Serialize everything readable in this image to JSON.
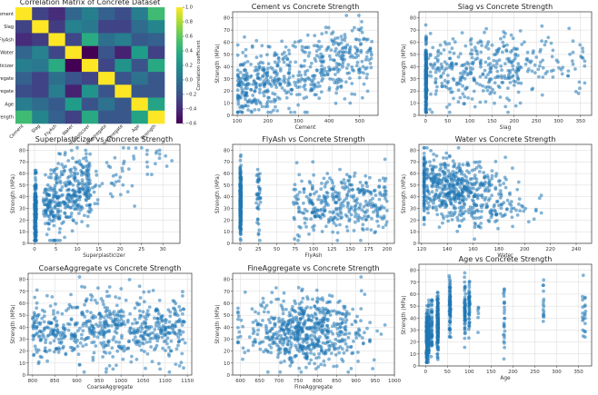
{
  "heatmap": {
    "title": "Correlation Matrix of Concrete Dataset",
    "variables": [
      "Cement",
      "Slag",
      "FlyAsh",
      "Water",
      "Superplasticizer",
      "CoarseAggregate",
      "FineAggregate",
      "Age",
      "Strength"
    ],
    "x_tick_labels": [
      "Cement",
      "Slag",
      "FlyAsh",
      "Water",
      "Superplasticizer",
      "CoarseAggregate",
      "FineAggregate",
      "Age",
      "Strength"
    ],
    "colorbar_label": "Correlation coefficient",
    "colorbar_ticks": [
      "1.0",
      "0.8",
      "0.6",
      "0.4",
      "0.2",
      "0.0",
      "−0.2",
      "−0.4",
      "−0.6"
    ],
    "colors": {
      "low": "#440154",
      "mid": "#21918c",
      "high": "#fde725"
    }
  },
  "chart_data": [
    {
      "type": "heatmap",
      "title": "Correlation Matrix of Concrete Dataset",
      "rows": [
        "Cement",
        "Slag",
        "FlyAsh",
        "Water",
        "Superplasticizer",
        "CoarseAggregate",
        "FineAggregate",
        "Age",
        "Strength"
      ],
      "cols": [
        "Cement",
        "Slag",
        "FlyAsh",
        "Water",
        "Superplasticizer",
        "CoarseAggregate",
        "FineAggregate",
        "Age",
        "Strength"
      ],
      "values": [
        [
          1.0,
          -0.28,
          -0.4,
          -0.08,
          0.09,
          -0.11,
          -0.22,
          0.08,
          0.5
        ],
        [
          -0.28,
          1.0,
          -0.32,
          0.11,
          0.04,
          -0.28,
          -0.28,
          -0.04,
          0.13
        ],
        [
          -0.4,
          -0.32,
          1.0,
          -0.26,
          0.38,
          -0.01,
          0.08,
          -0.15,
          -0.11
        ],
        [
          -0.08,
          0.11,
          -0.26,
          1.0,
          -0.66,
          -0.18,
          -0.45,
          0.28,
          -0.29
        ],
        [
          0.09,
          0.04,
          0.38,
          -0.66,
          1.0,
          -0.27,
          0.22,
          -0.19,
          0.37
        ],
        [
          -0.11,
          -0.28,
          -0.01,
          -0.18,
          -0.27,
          1.0,
          -0.18,
          0.0,
          -0.16
        ],
        [
          -0.22,
          -0.28,
          0.08,
          -0.45,
          0.22,
          -0.18,
          1.0,
          -0.16,
          -0.17
        ],
        [
          0.08,
          -0.04,
          -0.15,
          0.28,
          -0.19,
          0.0,
          -0.16,
          1.0,
          0.33
        ],
        [
          0.5,
          0.13,
          -0.11,
          -0.29,
          0.37,
          -0.16,
          -0.17,
          0.33,
          1.0
        ]
      ],
      "vmin": -0.6,
      "vmax": 1.0
    },
    {
      "type": "scatter",
      "title": "Cement vs Concrete Strength",
      "xlabel": "Cement",
      "ylabel": "Strength (MPa)",
      "xlim": [
        85,
        560
      ],
      "ylim": [
        0,
        85
      ],
      "xticks": [
        100,
        200,
        300,
        400,
        500
      ],
      "yticks": [
        0,
        10,
        20,
        30,
        40,
        50,
        60,
        70,
        80
      ],
      "grid": true,
      "color": "#1f77b4"
    },
    {
      "type": "scatter",
      "title": "Slag vs Concrete Strength",
      "xlabel": "Slag",
      "ylabel": "Strength (MPa)",
      "xlim": [
        -15,
        375
      ],
      "ylim": [
        0,
        85
      ],
      "xticks": [
        0,
        50,
        100,
        150,
        200,
        250,
        300,
        350
      ],
      "yticks": [
        0,
        10,
        20,
        30,
        40,
        50,
        60,
        70,
        80
      ],
      "grid": true,
      "color": "#1f77b4"
    },
    {
      "type": "scatter",
      "title": "Superplasticizer vs Concrete Strength",
      "xlabel": "Superplasticizer",
      "ylabel": "Strength (MPa)",
      "xlim": [
        -1.5,
        34
      ],
      "ylim": [
        0,
        85
      ],
      "xticks": [
        0,
        5,
        10,
        15,
        20,
        25,
        30
      ],
      "yticks": [
        0,
        10,
        20,
        30,
        40,
        50,
        60,
        70,
        80
      ],
      "grid": true,
      "color": "#1f77b4"
    },
    {
      "type": "scatter",
      "title": "FlyAsh vs Concrete Strength",
      "xlabel": "FlyAsh",
      "ylabel": "Strength (MPa)",
      "xlim": [
        -10,
        210
      ],
      "ylim": [
        0,
        85
      ],
      "xticks": [
        0,
        25,
        50,
        75,
        100,
        125,
        150,
        175,
        200
      ],
      "yticks": [
        0,
        10,
        20,
        30,
        40,
        50,
        60,
        70,
        80
      ],
      "grid": true,
      "color": "#1f77b4"
    },
    {
      "type": "scatter",
      "title": "Water vs Concrete Strength",
      "xlabel": "Water",
      "ylabel": "Strength (MPa)",
      "xlim": [
        118,
        252
      ],
      "ylim": [
        0,
        85
      ],
      "xticks": [
        120,
        140,
        160,
        180,
        200,
        220,
        240
      ],
      "yticks": [
        0,
        10,
        20,
        30,
        40,
        50,
        60,
        70,
        80
      ],
      "grid": true,
      "color": "#1f77b4"
    },
    {
      "type": "scatter",
      "title": "CoarseAggregate vs Concrete Strength",
      "xlabel": "CoarseAggregate",
      "ylabel": "Strength (MPa)",
      "xlim": [
        790,
        1160
      ],
      "ylim": [
        0,
        85
      ],
      "xticks": [
        800,
        850,
        900,
        950,
        1000,
        1050,
        1100,
        1150
      ],
      "yticks": [
        0,
        10,
        20,
        30,
        40,
        50,
        60,
        70,
        80
      ],
      "grid": true,
      "color": "#1f77b4"
    },
    {
      "type": "scatter",
      "title": "FineAggregate vs Concrete Strength",
      "xlabel": "FineAggregate",
      "ylabel": "Strength (MPa)",
      "xlim": [
        580,
        1000
      ],
      "ylim": [
        0,
        85
      ],
      "xticks": [
        600,
        650,
        700,
        750,
        800,
        850,
        900,
        950,
        1000
      ],
      "yticks": [
        0,
        10,
        20,
        30,
        40,
        50,
        60,
        70,
        80
      ],
      "grid": true,
      "color": "#1f77b4"
    },
    {
      "type": "scatter",
      "title": "Age vs Concrete Strength",
      "xlabel": "Age",
      "ylabel": "Strength (MPa)",
      "xlim": [
        -15,
        380
      ],
      "ylim": [
        0,
        85
      ],
      "xticks": [
        0,
        50,
        100,
        150,
        200,
        250,
        300,
        350
      ],
      "yticks": [
        0,
        10,
        20,
        30,
        40,
        50,
        60,
        70,
        80
      ],
      "grid": true,
      "color": "#1f77b4"
    }
  ]
}
